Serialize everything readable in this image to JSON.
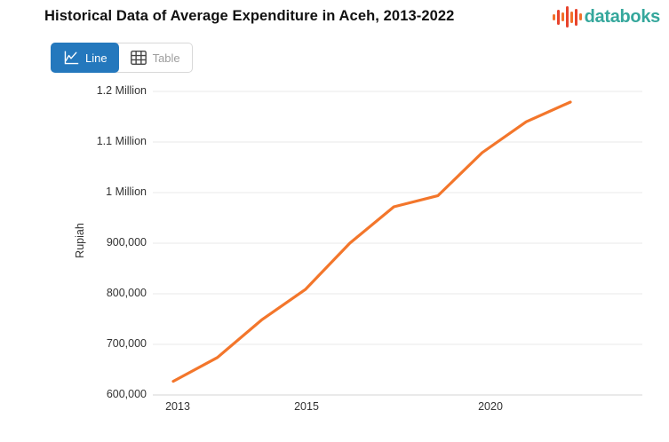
{
  "header": {
    "title": "Historical Data of Average Expenditure in Aceh, 2013-2022",
    "logo_text": "databoks",
    "logo_bar_colors": [
      "#f2712b",
      "#e8432c",
      "#f2712b",
      "#e8432c",
      "#f2712b",
      "#e8432c",
      "#f2712b"
    ],
    "logo_bar_heights": [
      7,
      17,
      10,
      24,
      13,
      19,
      8
    ]
  },
  "toolbar": {
    "line_label": "Line",
    "table_label": "Table"
  },
  "chart_data": {
    "type": "line",
    "title": "Historical Data of Average Expenditure in Aceh, 2013-2022",
    "ylabel": "Rupiah",
    "xlabel": "",
    "x": [
      2013,
      2014,
      2015,
      2016,
      2017,
      2018,
      2019,
      2020,
      2021,
      2022
    ],
    "values": [
      627000,
      674000,
      748000,
      809000,
      900000,
      972000,
      994000,
      1079000,
      1140000,
      1179000
    ],
    "ylim": [
      600000,
      1200000
    ],
    "grid": true,
    "legend_position": "none",
    "line_color": "#f3762b",
    "grid_color": "#e8e8e8",
    "axis_line_color": "#d5d5d5",
    "y_ticks": [
      {
        "label": "600,000",
        "value": 600000
      },
      {
        "label": "700,000",
        "value": 700000
      },
      {
        "label": "800,000",
        "value": 800000
      },
      {
        "label": "900,000",
        "value": 900000
      },
      {
        "label": "1 Million",
        "value": 1000000
      },
      {
        "label": "1.1 Million",
        "value": 1100000
      },
      {
        "label": "1.2 Million",
        "value": 1200000
      }
    ],
    "x_ticks": [
      {
        "label": "2013",
        "px": 200
      },
      {
        "label": "2015",
        "px": 345
      },
      {
        "label": "2020",
        "px": 552
      }
    ]
  }
}
